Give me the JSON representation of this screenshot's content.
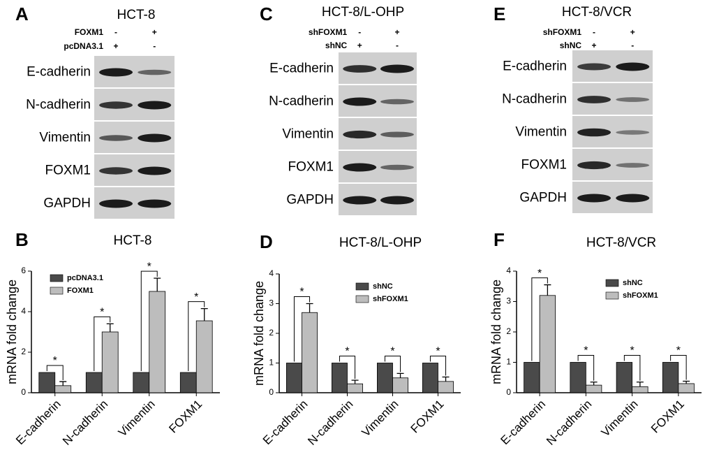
{
  "blots": [
    {
      "label": "A",
      "title": "HCT-8",
      "conditions": [
        {
          "name": "FOXM1",
          "signs": [
            "-",
            "+"
          ]
        },
        {
          "name": "pcDNA3.1",
          "signs": [
            "+",
            "-"
          ]
        }
      ],
      "proteins": [
        "E-cadherin",
        "N-cadherin",
        "Vimentin",
        "FOXM1",
        "GAPDH"
      ]
    },
    {
      "label": "C",
      "title": "HCT-8/L-OHP",
      "conditions": [
        {
          "name": "shFOXM1",
          "signs": [
            "-",
            "+"
          ]
        },
        {
          "name": "shNC",
          "signs": [
            "+",
            "-"
          ]
        }
      ],
      "proteins": [
        "E-cadherin",
        "N-cadherin",
        "Vimentin",
        "FOXM1",
        "GAPDH"
      ]
    },
    {
      "label": "E",
      "title": "HCT-8/VCR",
      "conditions": [
        {
          "name": "shFOXM1",
          "signs": [
            "-",
            "+"
          ]
        },
        {
          "name": "shNC",
          "signs": [
            "+",
            "-"
          ]
        }
      ],
      "proteins": [
        "E-cadherin",
        "N-cadherin",
        "Vimentin",
        "FOXM1",
        "GAPDH"
      ]
    }
  ],
  "chart_data": [
    {
      "label": "B",
      "type": "bar",
      "title": "HCT-8",
      "y_label": "mRNA fold change",
      "categories": [
        "E-cadherin",
        "N-cadherin",
        "Vimentin",
        "FOXM1"
      ],
      "series": [
        {
          "name": "pcDNA3.1",
          "color": "#4a4a4a",
          "values": [
            1,
            1,
            1,
            1
          ]
        },
        {
          "name": "FOXM1",
          "color": "#bdbdbd",
          "values": [
            0.35,
            3.0,
            5.0,
            3.55
          ],
          "errors": [
            0.2,
            0.4,
            0.65,
            0.6
          ]
        }
      ],
      "significance": [
        "*",
        "*",
        "*",
        "*"
      ],
      "ylim": [
        0,
        6
      ],
      "yticks": [
        0,
        2,
        4,
        6
      ]
    },
    {
      "label": "D",
      "type": "bar",
      "title": "HCT-8/L-OHP",
      "y_label": "mRNA fold change",
      "categories": [
        "E-cadherin",
        "N-cadherin",
        "Vimentin",
        "FOXM1"
      ],
      "series": [
        {
          "name": "shNC",
          "color": "#4a4a4a",
          "values": [
            1,
            1,
            1,
            1
          ]
        },
        {
          "name": "shFOXM1",
          "color": "#bdbdbd",
          "values": [
            2.7,
            0.3,
            0.5,
            0.38
          ],
          "errors": [
            0.3,
            0.12,
            0.15,
            0.15
          ]
        }
      ],
      "significance": [
        "*",
        "*",
        "*",
        "*"
      ],
      "ylim": [
        0,
        4
      ],
      "yticks": [
        0,
        1,
        2,
        3,
        4
      ]
    },
    {
      "label": "F",
      "type": "bar",
      "title": "HCT-8/VCR",
      "y_label": "mRNA fold change",
      "categories": [
        "E-cadherin",
        "N-cadherin",
        "Vimentin",
        "FOXM1"
      ],
      "series": [
        {
          "name": "shNC",
          "color": "#4a4a4a",
          "values": [
            1,
            1,
            1,
            1
          ]
        },
        {
          "name": "shFOXM1",
          "color": "#bdbdbd",
          "values": [
            3.2,
            0.25,
            0.2,
            0.3
          ],
          "errors": [
            0.35,
            0.1,
            0.15,
            0.08
          ]
        }
      ],
      "significance": [
        "*",
        "*",
        "*",
        "*"
      ],
      "ylim": [
        0,
        4
      ],
      "yticks": [
        0,
        1,
        2,
        3,
        4
      ]
    }
  ]
}
